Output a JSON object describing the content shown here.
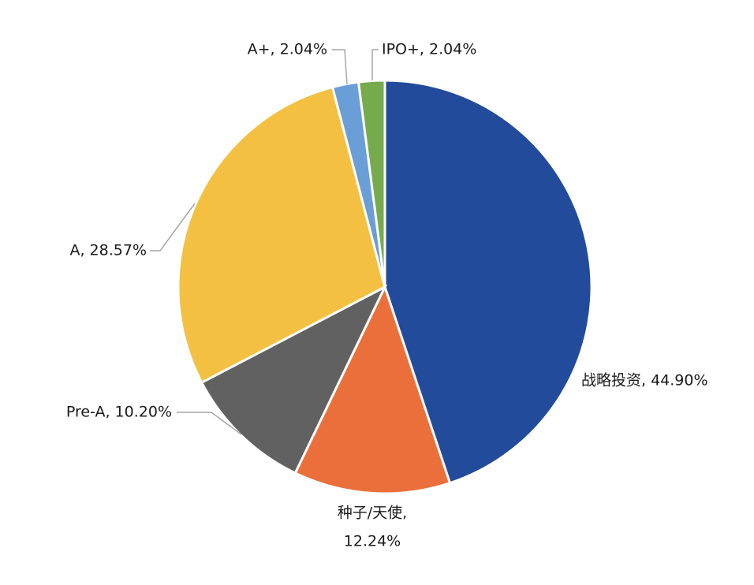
{
  "chart_data": {
    "type": "pie",
    "title": "",
    "start_angle_deg": 0,
    "direction": "clockwise",
    "legend": "none",
    "slices": [
      {
        "label": "战略投资, 44.90%",
        "value": 44.9,
        "color": "#234B9B"
      },
      {
        "label": "种子/天使,",
        "label_line2": "12.24%",
        "value": 12.24,
        "color": "#EB6F3A"
      },
      {
        "label": "Pre-A, 10.20%",
        "value": 10.2,
        "color": "#616161"
      },
      {
        "label": "A, 28.57%",
        "value": 28.57,
        "color": "#F4C042"
      },
      {
        "label": "A+, 2.04%",
        "value": 2.04,
        "color": "#6A9ED6"
      },
      {
        "label": "IPO+, 2.04%",
        "value": 2.04,
        "color": "#76AB4D"
      }
    ]
  }
}
